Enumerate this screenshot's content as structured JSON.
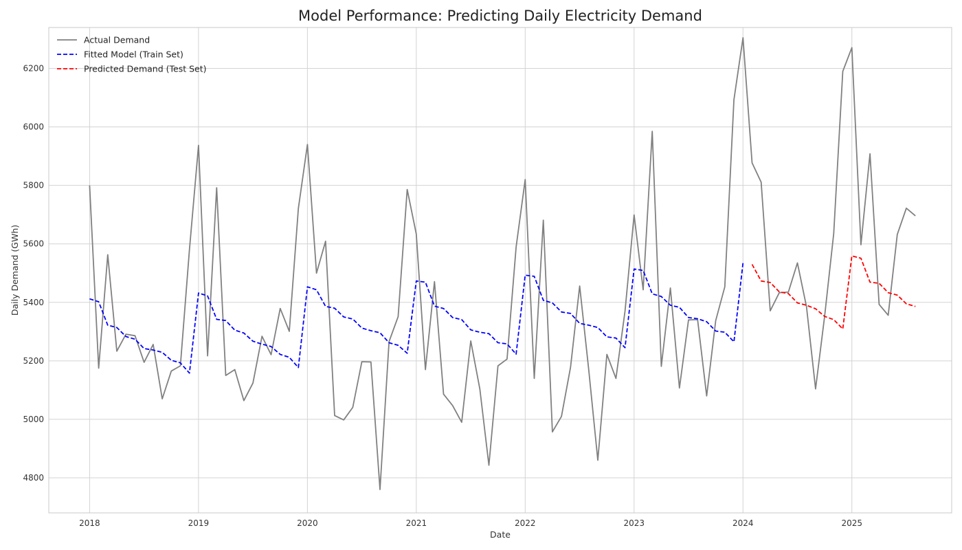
{
  "chart_data": {
    "type": "line",
    "title": "Model Performance: Predicting Daily Electricity Demand",
    "xlabel": "Date",
    "ylabel": "Daily Demand (GWh)",
    "x_ticks": [
      "2018",
      "2019",
      "2020",
      "2021",
      "2022",
      "2023",
      "2024",
      "2025"
    ],
    "y_ticks": [
      "4800",
      "5000",
      "5200",
      "5400",
      "5600",
      "5800",
      "6000",
      "6200"
    ],
    "xlim": [
      "2017-08",
      "2025-12"
    ],
    "ylim": [
      4680,
      6340
    ],
    "grid": true,
    "legend_position": "top-left",
    "colors": {
      "actual": "#808080",
      "train": "#0000ff",
      "test": "#ff0000"
    },
    "series": [
      {
        "name": "Actual Demand",
        "style": "solid",
        "color": "#808080",
        "start": "2018-01",
        "values": [
          5800,
          5175,
          5563,
          5233,
          5291,
          5286,
          5195,
          5256,
          5070,
          5165,
          5183,
          5580,
          5937,
          5217,
          5792,
          5150,
          5170,
          5064,
          5124,
          5284,
          5221,
          5379,
          5301,
          5721,
          5940,
          5500,
          5609,
          5013,
          4998,
          5041,
          5197,
          5196,
          4760,
          5266,
          5351,
          5786,
          5634,
          5170,
          5471,
          5086,
          5047,
          4990,
          5268,
          5104,
          4843,
          5183,
          5206,
          5589,
          5820,
          5140,
          5681,
          4957,
          5010,
          5178,
          5456,
          5169,
          4860,
          5222,
          5140,
          5370,
          5699,
          5443,
          5985,
          5181,
          5449,
          5107,
          5340,
          5341,
          5080,
          5338,
          5453,
          6093,
          6305,
          5877,
          5811,
          5371,
          5433,
          5435,
          5535,
          5385,
          5104,
          5353,
          5635,
          6190,
          6271,
          5597,
          5908,
          5393,
          5356,
          5632,
          5722,
          5696
        ]
      },
      {
        "name": "Fitted Model (Train Set)",
        "style": "dashed",
        "color": "#0000ff",
        "start": "2018-01",
        "values": [
          5412,
          5402,
          5322,
          5314,
          5283,
          5274,
          5242,
          5237,
          5229,
          5202,
          5193,
          5158,
          5432,
          5422,
          5342,
          5338,
          5305,
          5295,
          5267,
          5257,
          5249,
          5222,
          5212,
          5177,
          5453,
          5443,
          5386,
          5380,
          5350,
          5343,
          5312,
          5303,
          5296,
          5262,
          5253,
          5226,
          5473,
          5469,
          5387,
          5379,
          5348,
          5341,
          5306,
          5298,
          5293,
          5262,
          5258,
          5223,
          5493,
          5489,
          5407,
          5398,
          5367,
          5362,
          5328,
          5322,
          5314,
          5282,
          5278,
          5245,
          5514,
          5509,
          5429,
          5420,
          5390,
          5383,
          5348,
          5344,
          5334,
          5302,
          5298,
          5265,
          5535
        ]
      },
      {
        "name": "Predicted Demand (Test Set)",
        "style": "dashed",
        "color": "#ff0000",
        "start": "2024-02",
        "values": [
          5530,
          5473,
          5468,
          5436,
          5430,
          5398,
          5390,
          5378,
          5352,
          5341,
          5309,
          5559,
          5551,
          5469,
          5465,
          5433,
          5425,
          5395,
          5386
        ]
      }
    ]
  }
}
